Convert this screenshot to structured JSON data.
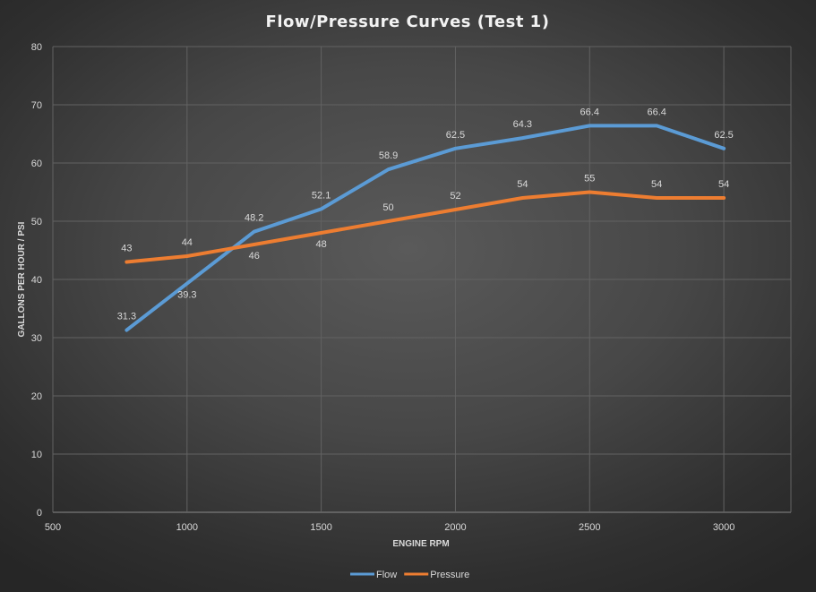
{
  "chart_data": {
    "type": "line",
    "title": "Flow/Pressure  Curves  (Test 1)",
    "xlabel": "ENGINE RPM",
    "ylabel": "GALLONS PER HOUR / PSI",
    "xlim": [
      500,
      3250
    ],
    "ylim": [
      0,
      80
    ],
    "x_ticks": [
      500,
      1000,
      1500,
      2000,
      2500,
      3000
    ],
    "y_ticks": [
      0,
      10,
      20,
      30,
      40,
      50,
      60,
      70,
      80
    ],
    "x": [
      775,
      1000,
      1250,
      1500,
      1750,
      2000,
      2250,
      2500,
      2750,
      3000
    ],
    "grid": true,
    "legend_position": "bottom",
    "series": [
      {
        "name": "Flow",
        "color": "#5b9bd5",
        "values": [
          31.3,
          39.3,
          48.2,
          52.1,
          58.9,
          62.5,
          64.3,
          66.4,
          66.4,
          62.5
        ],
        "labels": [
          "31.3",
          "39.3",
          "48.2",
          "52.1",
          "58.9",
          "62.5",
          "64.3",
          "66.4",
          "66.4",
          "62.5"
        ]
      },
      {
        "name": "Pressure",
        "color": "#ed7d31",
        "values": [
          43,
          44,
          46,
          48,
          50,
          52,
          54,
          55,
          54,
          54
        ],
        "labels": [
          "43",
          "44",
          "46",
          "48",
          "50",
          "52",
          "54",
          "55",
          "54",
          "54"
        ]
      }
    ]
  }
}
